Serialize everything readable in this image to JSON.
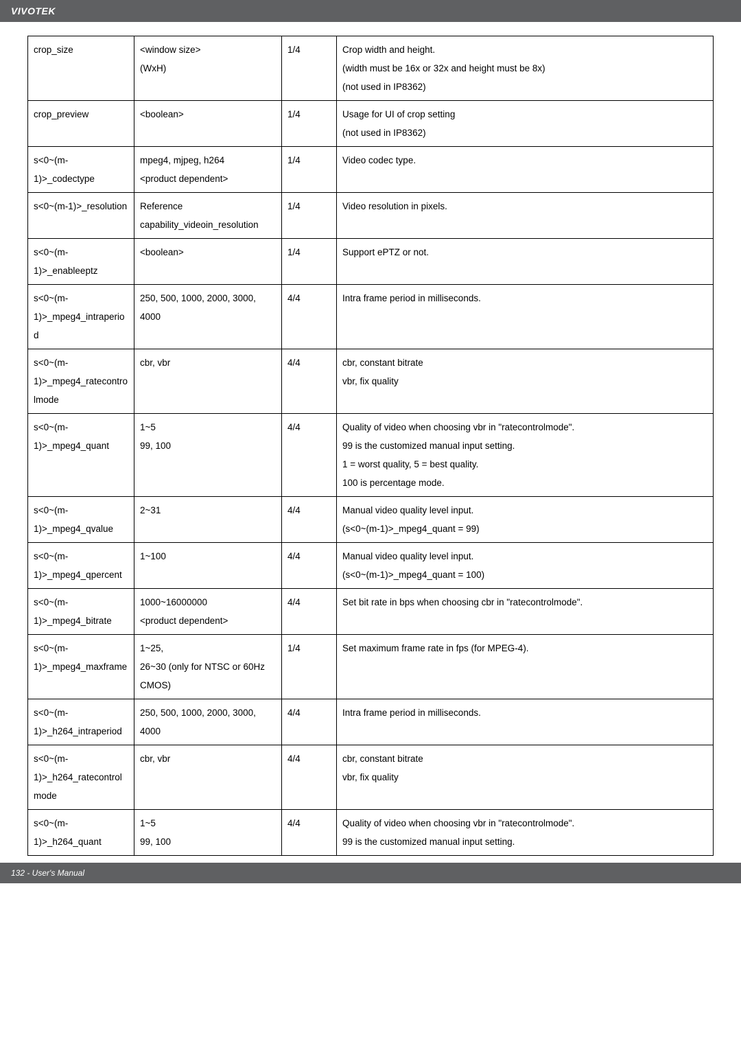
{
  "brand": "VIVOTEK",
  "footer_text": "132 - User's Manual",
  "columns": {
    "c1_width": 155,
    "c2_width": 215,
    "c3_width": 80
  },
  "table_style": {
    "border_color": "#000000",
    "header_bg": "#5f6062",
    "header_text_color": "#ffffff",
    "body_font_size": 13.5,
    "line_height": 2.0
  },
  "rows": [
    {
      "name": "crop_size",
      "value": "<window size>\n(WxH)",
      "sec": "1/4",
      "desc": "Crop width and height.\n(width must be 16x or 32x and height must be 8x)\n(not used in IP8362)"
    },
    {
      "name": "crop_preview",
      "value": "<boolean>",
      "sec": "1/4",
      "desc": "Usage for UI of crop setting\n(not used in IP8362)"
    },
    {
      "name": "s<0~(m-1)>_codectype",
      "value": "mpeg4, mjpeg, h264\n<product dependent>",
      "sec": "1/4",
      "desc": "Video codec type."
    },
    {
      "name": "s<0~(m-1)>_resolution",
      "value": "Reference\ncapability_videoin_resolution",
      "sec": "1/4",
      "desc": "Video resolution in pixels."
    },
    {
      "name": "s<0~(m-1)>_enableeptz",
      "value": "<boolean>",
      "sec": "1/4",
      "desc": "Support ePTZ or not."
    },
    {
      "name": "s<0~(m-1)>_mpeg4_intraperiod",
      "value": "250, 500, 1000, 2000, 3000, 4000",
      "sec": "4/4",
      "desc": "Intra frame period in milliseconds."
    },
    {
      "name": "s<0~(m-1)>_mpeg4_ratecontrolmode",
      "value": "cbr, vbr",
      "sec": "4/4",
      "desc": "cbr, constant bitrate\nvbr, fix quality"
    },
    {
      "name": "s<0~(m-1)>_mpeg4_quant",
      "value": "1~5\n99, 100",
      "sec": "4/4",
      "desc": "Quality of video when choosing vbr in \"ratecontrolmode\".\n99 is the customized manual input setting.\n1 = worst quality, 5 = best quality.\n100 is percentage mode."
    },
    {
      "name": "s<0~(m-1)>_mpeg4_qvalue",
      "value": "2~31",
      "sec": "4/4",
      "desc": "Manual video quality level input.\n(s<0~(m-1)>_mpeg4_quant = 99)"
    },
    {
      "name": "s<0~(m-1)>_mpeg4_qpercent",
      "value": "1~100",
      "sec": "4/4",
      "desc": "Manual video quality level input.\n(s<0~(m-1)>_mpeg4_quant = 100)"
    },
    {
      "name": "s<0~(m-1)>_mpeg4_bitrate",
      "value": "1000~16000000\n<product dependent>",
      "sec": "4/4",
      "desc": "Set bit rate in bps when choosing cbr in \"ratecontrolmode\"."
    },
    {
      "name": "s<0~(m-1)>_mpeg4_maxframe",
      "value": "1~25,\n26~30 (only for NTSC or 60Hz CMOS)",
      "sec": "1/4",
      "desc": "Set maximum frame rate in fps (for MPEG-4)."
    },
    {
      "name": "s<0~(m-1)>_h264_intraperiod",
      "value": "250, 500, 1000, 2000, 3000, 4000",
      "sec": "4/4",
      "desc": "Intra frame period in milliseconds."
    },
    {
      "name": "s<0~(m-1)>_h264_ratecontrolmode",
      "value": "cbr, vbr",
      "sec": "4/4",
      "desc": "cbr, constant bitrate\nvbr, fix quality"
    },
    {
      "name": "s<0~(m-1)>_h264_quant",
      "value": "1~5\n99, 100",
      "sec": "4/4",
      "desc": "Quality of video when choosing vbr in \"ratecontrolmode\".\n99 is the customized manual input setting."
    }
  ]
}
